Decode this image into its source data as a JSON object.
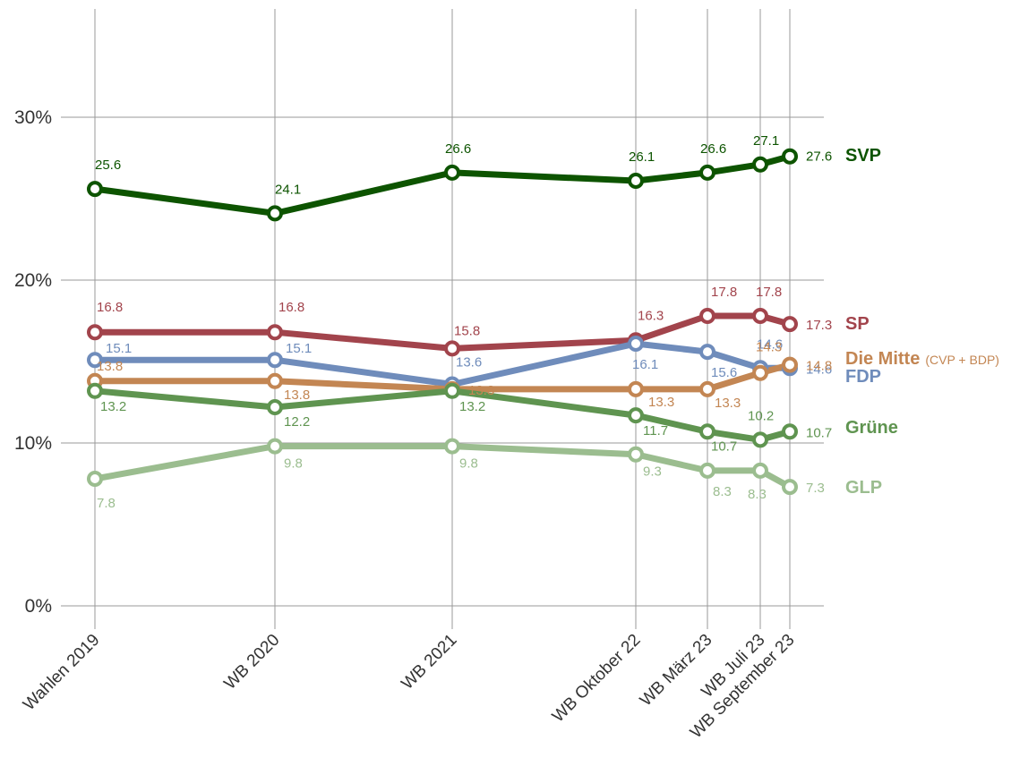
{
  "chart_data": {
    "type": "line",
    "categories": [
      "Wahlen 2019",
      "WB 2020",
      "WB 2021",
      "WB Oktober 22",
      "WB März 23",
      "WB Juli 23",
      "WB September 23"
    ],
    "y_ticks": [
      "0%",
      "10%",
      "20%",
      "30%"
    ],
    "ylim": [
      -1.5,
      37
    ],
    "grid": "on",
    "legend": "right",
    "series": [
      {
        "key": "svp",
        "name": "SVP",
        "name_sub": "",
        "color": "#0d5400",
        "values": [
          25.6,
          24.1,
          26.6,
          26.1,
          26.6,
          27.1,
          27.6
        ]
      },
      {
        "key": "sp",
        "name": "SP",
        "name_sub": "",
        "color": "#a2444c",
        "values": [
          16.8,
          16.8,
          15.8,
          16.3,
          17.8,
          17.8,
          17.3
        ]
      },
      {
        "key": "fdp",
        "name": "FDP",
        "name_sub": "",
        "color": "#6f8cbb",
        "values": [
          15.1,
          15.1,
          13.6,
          16.1,
          15.6,
          14.6,
          14.6
        ]
      },
      {
        "key": "mitte",
        "name": "Die Mitte",
        "name_sub": "(CVP + BDP)",
        "color": "#c38653",
        "values": [
          13.8,
          13.8,
          13.3,
          13.3,
          13.3,
          14.3,
          14.8
        ]
      },
      {
        "key": "gruene",
        "name": "Grüne",
        "name_sub": "",
        "color": "#5f9450",
        "values": [
          13.2,
          12.2,
          13.2,
          11.7,
          10.7,
          10.2,
          10.7
        ]
      },
      {
        "key": "glp",
        "name": "GLP",
        "name_sub": "",
        "color": "#9bbd8f",
        "values": [
          7.8,
          9.8,
          9.8,
          9.3,
          8.3,
          8.3,
          7.3
        ]
      }
    ]
  }
}
